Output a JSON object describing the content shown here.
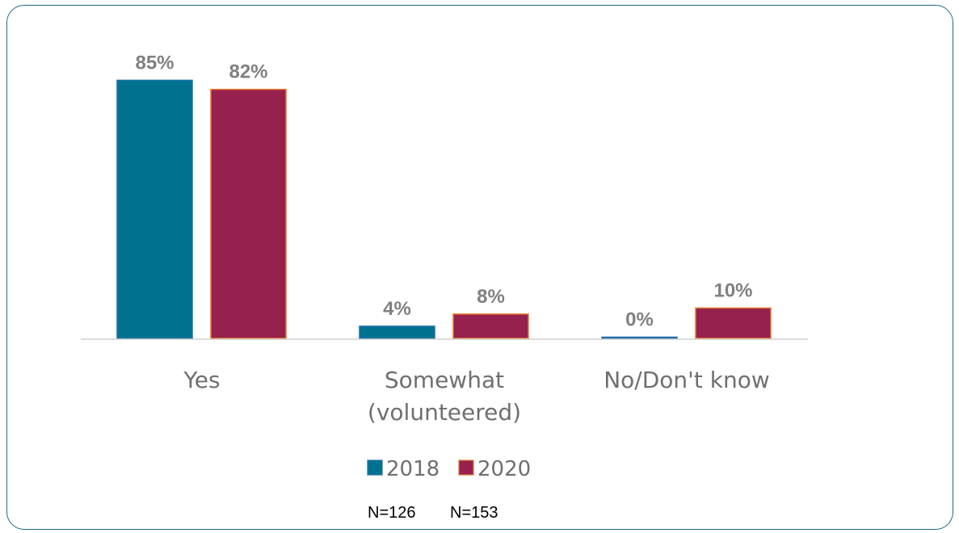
{
  "chart_data": {
    "type": "bar",
    "categories": [
      "Yes",
      "Somewhat (volunteered)",
      "No/Don't know"
    ],
    "category_lines": [
      [
        "Yes"
      ],
      [
        "Somewhat",
        "(volunteered)"
      ],
      [
        "No/Don't know"
      ]
    ],
    "series": [
      {
        "name": "2018",
        "values": [
          85,
          4,
          0
        ],
        "labels": [
          "85%",
          "4%",
          "0%"
        ],
        "color": "#00728f",
        "stroke": "#1f6fa8"
      },
      {
        "name": "2020",
        "values": [
          82,
          8,
          10
        ],
        "labels": [
          "82%",
          "8%",
          "10%"
        ],
        "color": "#96204e",
        "stroke": "#e07a2e"
      }
    ],
    "ylim": [
      0,
      100
    ],
    "grid": false,
    "legend": "bottom",
    "sample_sizes": [
      "N=126",
      "N=153"
    ]
  }
}
